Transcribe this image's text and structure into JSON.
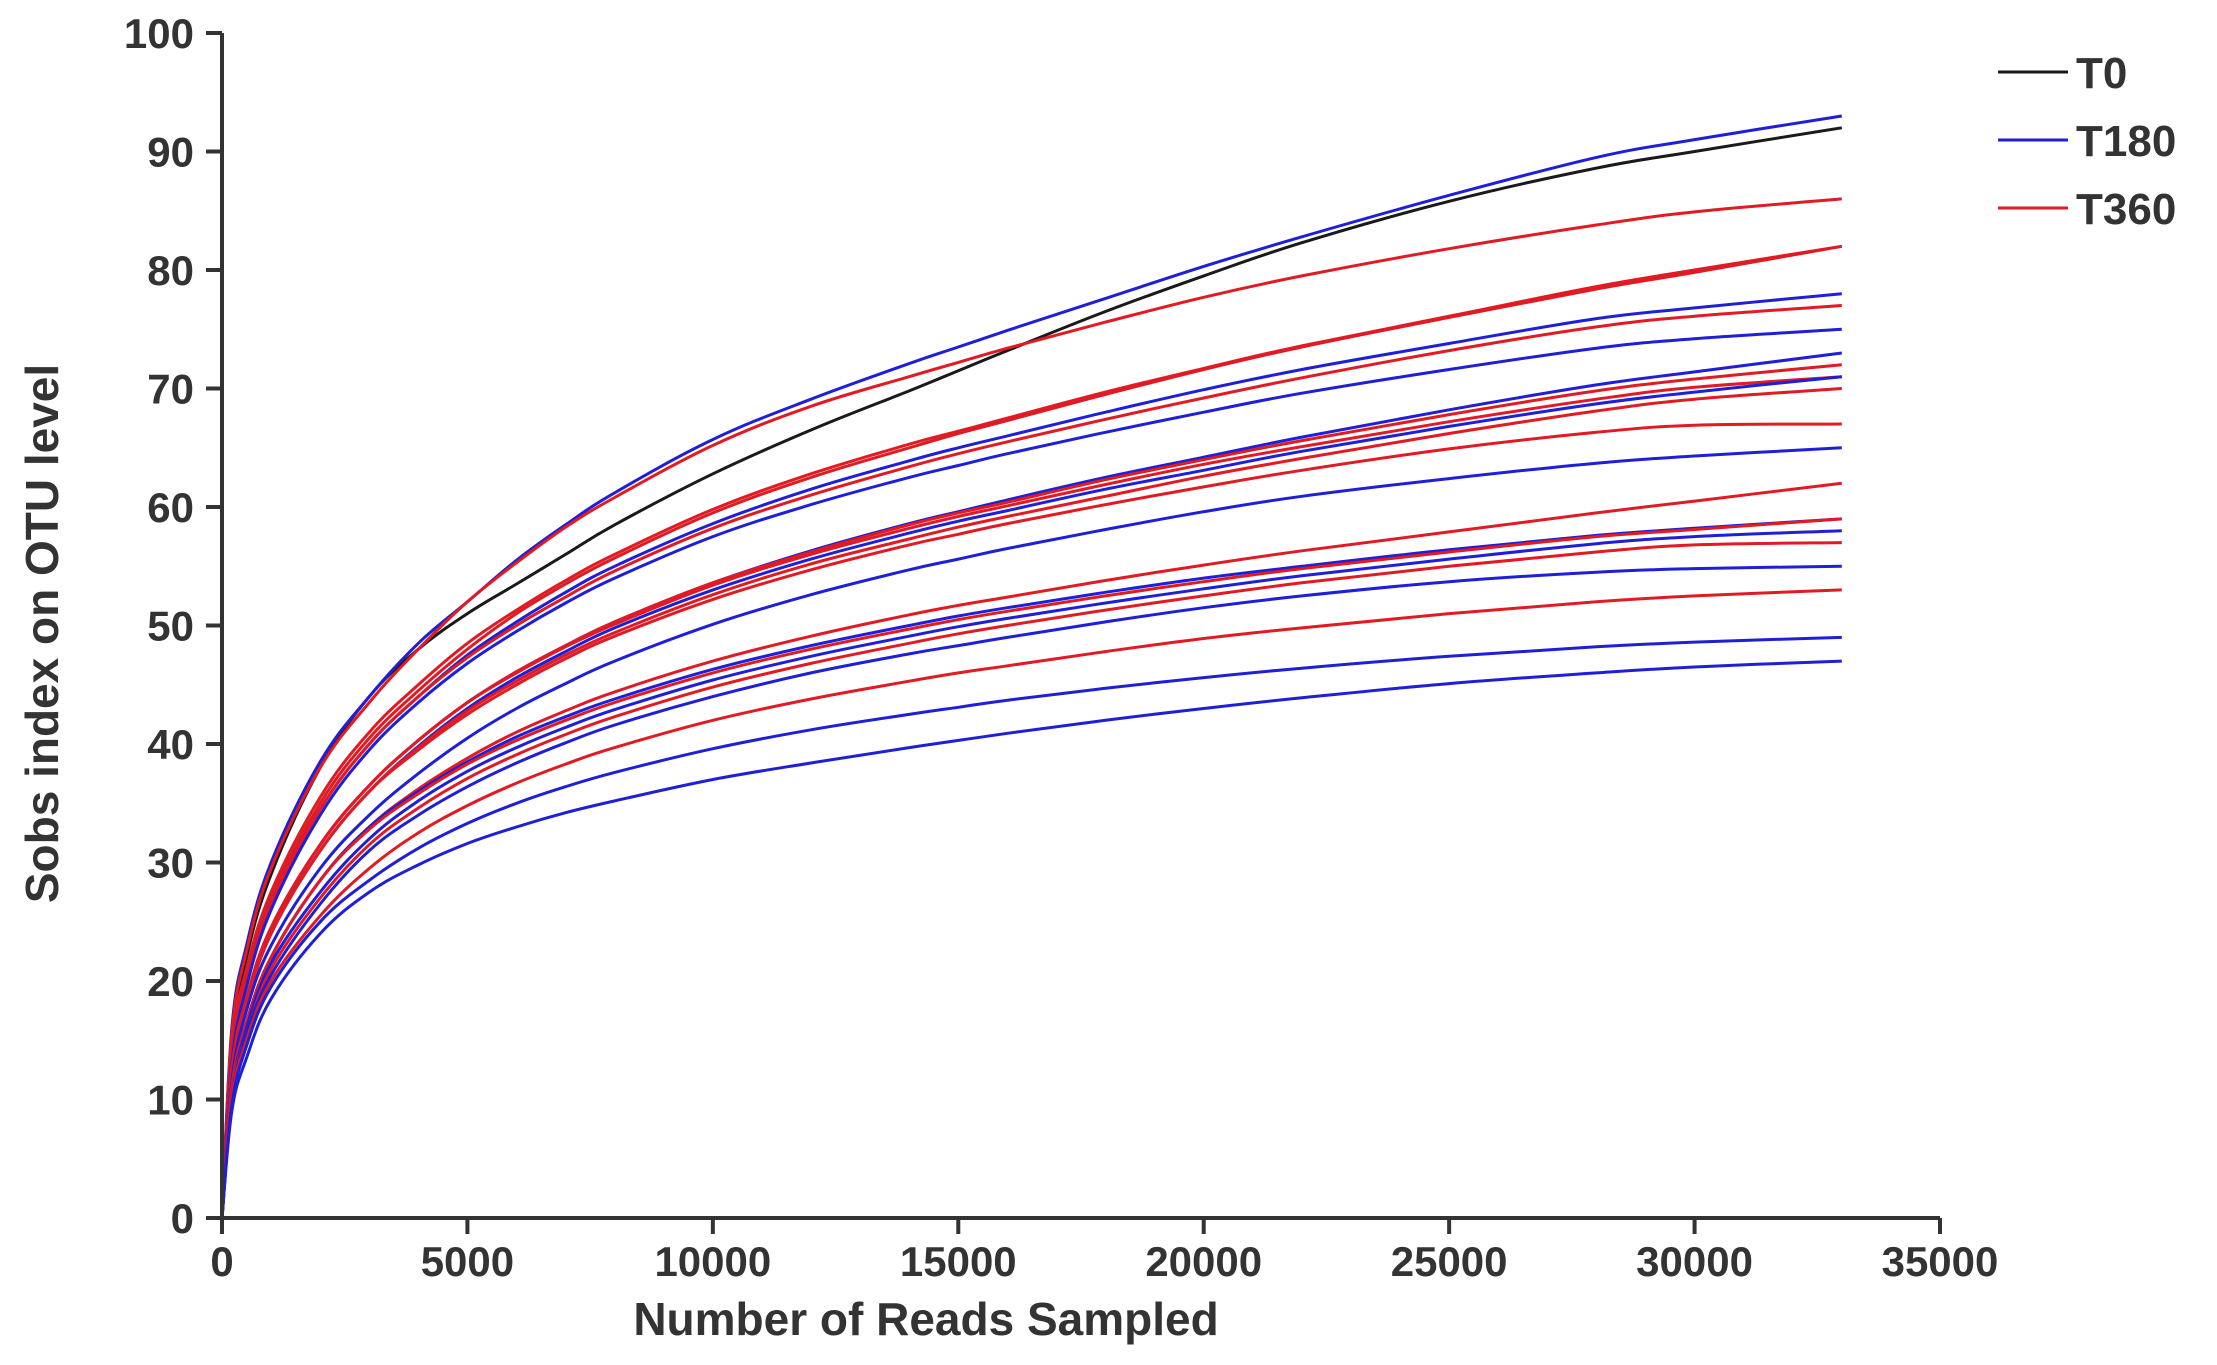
{
  "chart_data": {
    "type": "line",
    "title": "",
    "xlabel": "Number of Reads Sampled",
    "ylabel": "Sobs index on OTU level",
    "xlim": [
      0,
      35000
    ],
    "ylim": [
      0,
      100
    ],
    "x_ticks": [
      0,
      5000,
      10000,
      15000,
      20000,
      25000,
      30000,
      35000
    ],
    "y_ticks": [
      0,
      10,
      20,
      30,
      40,
      50,
      60,
      70,
      80,
      90,
      100
    ],
    "x_tick_labels": [
      "0",
      "5000",
      "10000",
      "15000",
      "20000",
      "25000",
      "30000",
      "35000"
    ],
    "y_tick_labels": [
      "0",
      "10",
      "20",
      "30",
      "40",
      "50",
      "60",
      "70",
      "80",
      "90",
      "100"
    ],
    "grid": false,
    "legend_position": "top-right",
    "legend": [
      {
        "label": "T0",
        "color": "#1a1a1a"
      },
      {
        "label": "T180",
        "color": "#1f1fd6"
      },
      {
        "label": "T360",
        "color": "#e01b24"
      }
    ],
    "x": [
      0,
      200,
      500,
      1000,
      2000,
      3000,
      4000,
      5000,
      6000,
      7000,
      8000,
      10000,
      12000,
      14000,
      15000,
      16000,
      18000,
      20000,
      22000,
      25000,
      28000,
      30000,
      33000
    ],
    "series": [
      {
        "group": "T0",
        "color": "#1a1a1a",
        "values": [
          0,
          15,
          22,
          29,
          38,
          44,
          48,
          51,
          53.5,
          56,
          58.5,
          62.8,
          66.5,
          69.8,
          71.5,
          73.2,
          76.5,
          79.5,
          82.3,
          85.8,
          88.6,
          90.0,
          92
        ]
      },
      {
        "group": "T180",
        "color": "#1f1fd6",
        "values": [
          0,
          16,
          23,
          30,
          38.5,
          44,
          48.5,
          52,
          55.5,
          58.5,
          61.2,
          65.7,
          69.1,
          72.1,
          73.5,
          74.9,
          77.6,
          80.3,
          82.8,
          86.3,
          89.5,
          91.0,
          93
        ]
      },
      {
        "group": "T360",
        "color": "#e01b24",
        "values": [
          0,
          15.5,
          22.5,
          29.5,
          38,
          43.5,
          48,
          52,
          55.3,
          58.3,
          60.8,
          65.2,
          68.5,
          71.0,
          72.2,
          73.4,
          75.6,
          77.7,
          79.5,
          81.8,
          83.8,
          84.9,
          86
        ]
      },
      {
        "group": "T360",
        "color": "#e01b24",
        "values": [
          0,
          14,
          20.5,
          27,
          35,
          40.5,
          44.5,
          48,
          51,
          53.5,
          55.7,
          59.5,
          62.5,
          65.0,
          66.2,
          67.3,
          69.5,
          71.6,
          73.5,
          76.0,
          78.4,
          79.8,
          82
        ]
      },
      {
        "group": "T360",
        "color": "#e01b24",
        "values": [
          0,
          14.5,
          21,
          27.5,
          35.5,
          41,
          45,
          48.5,
          51.3,
          53.8,
          56.0,
          59.8,
          62.8,
          65.3,
          66.4,
          67.5,
          69.7,
          71.7,
          73.6,
          76.1,
          78.6,
          80.0,
          82
        ]
      },
      {
        "group": "T180",
        "color": "#1f1fd6",
        "values": [
          0,
          13.5,
          20,
          26.5,
          34.5,
          40,
          44,
          47.5,
          50.3,
          52.8,
          55.0,
          58.6,
          61.5,
          63.9,
          65.0,
          66.0,
          68.0,
          69.9,
          71.6,
          73.8,
          75.9,
          76.8,
          78
        ]
      },
      {
        "group": "T360",
        "color": "#e01b24",
        "values": [
          0,
          13.5,
          20,
          26.5,
          34.5,
          40,
          44,
          47.3,
          50.0,
          52.4,
          54.6,
          58.2,
          61.0,
          63.4,
          64.5,
          65.5,
          67.4,
          69.2,
          70.9,
          73.2,
          75.2,
          76.1,
          77
        ]
      },
      {
        "group": "T180",
        "color": "#1f1fd6",
        "values": [
          0,
          13,
          19.5,
          26,
          34,
          39.5,
          43.5,
          46.8,
          49.5,
          51.9,
          54.0,
          57.5,
          60.2,
          62.5,
          63.5,
          64.5,
          66.3,
          68.0,
          69.6,
          71.6,
          73.4,
          74.2,
          75
        ]
      },
      {
        "group": "T180",
        "color": "#1f1fd6",
        "values": [
          0,
          12.5,
          18.5,
          24.5,
          31.5,
          36.5,
          40.3,
          43.5,
          46.1,
          48.3,
          50.3,
          53.6,
          56.3,
          58.6,
          59.6,
          60.6,
          62.5,
          64.2,
          65.9,
          68.2,
          70.3,
          71.4,
          73
        ]
      },
      {
        "group": "T360",
        "color": "#e01b24",
        "values": [
          0,
          12.5,
          18.5,
          24.5,
          31.5,
          36.5,
          40.3,
          43.5,
          46.1,
          48.3,
          50.3,
          53.6,
          56.2,
          58.5,
          59.5,
          60.4,
          62.3,
          64.0,
          65.6,
          67.8,
          69.8,
          70.8,
          72
        ]
      },
      {
        "group": "T360",
        "color": "#e01b24",
        "values": [
          0,
          12.5,
          18.5,
          24.5,
          31.5,
          36.5,
          40.3,
          43.5,
          46.0,
          48.2,
          50.1,
          53.4,
          56.0,
          58.2,
          59.2,
          60.1,
          61.9,
          63.6,
          65.1,
          67.2,
          69.1,
          70.1,
          71
        ]
      },
      {
        "group": "T180",
        "color": "#1f1fd6",
        "values": [
          0,
          12,
          18,
          24,
          31,
          36,
          39.8,
          43,
          45.6,
          47.8,
          49.8,
          53.0,
          55.6,
          57.8,
          58.8,
          59.7,
          61.5,
          63.1,
          64.7,
          66.8,
          68.7,
          69.7,
          71
        ]
      },
      {
        "group": "T360",
        "color": "#e01b24",
        "values": [
          0,
          12,
          18,
          24,
          31,
          36,
          39.7,
          42.8,
          45.3,
          47.5,
          49.4,
          52.6,
          55.2,
          57.3,
          58.3,
          59.2,
          60.9,
          62.6,
          64.1,
          66.2,
          68.1,
          69.1,
          70
        ]
      },
      {
        "group": "T360",
        "color": "#e01b24",
        "values": [
          0,
          12,
          18,
          24,
          31,
          36,
          39.5,
          42.5,
          45.0,
          47.2,
          49.1,
          52.2,
          54.7,
          56.8,
          57.7,
          58.6,
          60.2,
          61.7,
          63.1,
          64.9,
          66.3,
          66.9,
          67
        ]
      },
      {
        "group": "T180",
        "color": "#1f1fd6",
        "values": [
          0,
          11.5,
          17.5,
          23,
          29.5,
          34,
          37.5,
          40.5,
          43.0,
          45.1,
          47.0,
          50.1,
          52.6,
          54.7,
          55.6,
          56.5,
          58.1,
          59.6,
          60.9,
          62.4,
          63.7,
          64.3,
          65
        ]
      },
      {
        "group": "T360",
        "color": "#e01b24",
        "values": [
          0,
          11,
          16.5,
          22,
          28.5,
          33,
          36.2,
          38.8,
          41.0,
          42.8,
          44.4,
          47.0,
          49.1,
          50.9,
          51.7,
          52.4,
          53.8,
          55.1,
          56.3,
          57.9,
          59.5,
          60.5,
          62
        ]
      },
      {
        "group": "T180",
        "color": "#1f1fd6",
        "values": [
          0,
          11,
          16.5,
          22,
          28.5,
          33,
          36,
          38.5,
          40.6,
          42.3,
          43.8,
          46.3,
          48.3,
          50.0,
          50.8,
          51.5,
          52.8,
          54.0,
          55.0,
          56.4,
          57.6,
          58.2,
          59
        ]
      },
      {
        "group": "T360",
        "color": "#e01b24",
        "values": [
          0,
          11,
          16.5,
          22,
          28.5,
          32.8,
          35.8,
          38.3,
          40.3,
          42.0,
          43.5,
          46.0,
          48.0,
          49.7,
          50.5,
          51.2,
          52.5,
          53.7,
          54.8,
          56.2,
          57.5,
          58.1,
          59
        ]
      },
      {
        "group": "T180",
        "color": "#1f1fd6",
        "values": [
          0,
          10.5,
          16,
          21.5,
          27.5,
          32,
          35.2,
          37.7,
          39.7,
          41.4,
          42.9,
          45.4,
          47.4,
          49.1,
          49.9,
          50.6,
          51.9,
          53.1,
          54.2,
          55.6,
          56.9,
          57.5,
          58
        ]
      },
      {
        "group": "T360",
        "color": "#e01b24",
        "values": [
          0,
          10.5,
          15.5,
          21,
          27,
          31.5,
          34.6,
          37.1,
          39.1,
          40.8,
          42.3,
          44.8,
          46.8,
          48.5,
          49.3,
          50.0,
          51.3,
          52.5,
          53.6,
          55.0,
          56.2,
          56.8,
          57
        ]
      },
      {
        "group": "T180",
        "color": "#1f1fd6",
        "values": [
          0,
          10,
          15.5,
          20.5,
          26.5,
          31,
          34,
          36.4,
          38.4,
          40.1,
          41.6,
          44.0,
          46.0,
          47.6,
          48.3,
          49.0,
          50.3,
          51.5,
          52.5,
          53.7,
          54.5,
          54.8,
          55
        ]
      },
      {
        "group": "T360",
        "color": "#e01b24",
        "values": [
          0,
          10,
          15,
          20,
          25.5,
          29.5,
          32.5,
          34.8,
          36.7,
          38.3,
          39.7,
          42.0,
          43.8,
          45.3,
          46.0,
          46.6,
          47.8,
          48.9,
          49.8,
          51.0,
          52.0,
          52.5,
          53
        ]
      },
      {
        "group": "T180",
        "color": "#1f1fd6",
        "values": [
          0,
          9.5,
          14.5,
          19.5,
          25,
          28.5,
          31.2,
          33.3,
          35.0,
          36.4,
          37.6,
          39.6,
          41.2,
          42.5,
          43.1,
          43.7,
          44.7,
          45.6,
          46.4,
          47.4,
          48.2,
          48.6,
          49
        ]
      },
      {
        "group": "T180",
        "color": "#1f1fd6",
        "values": [
          0,
          9,
          13.5,
          18.5,
          24,
          27.5,
          29.8,
          31.6,
          33.0,
          34.2,
          35.2,
          37.0,
          38.4,
          39.7,
          40.3,
          40.9,
          42.0,
          43.0,
          43.9,
          45.1,
          46.0,
          46.5,
          47
        ]
      }
    ]
  }
}
